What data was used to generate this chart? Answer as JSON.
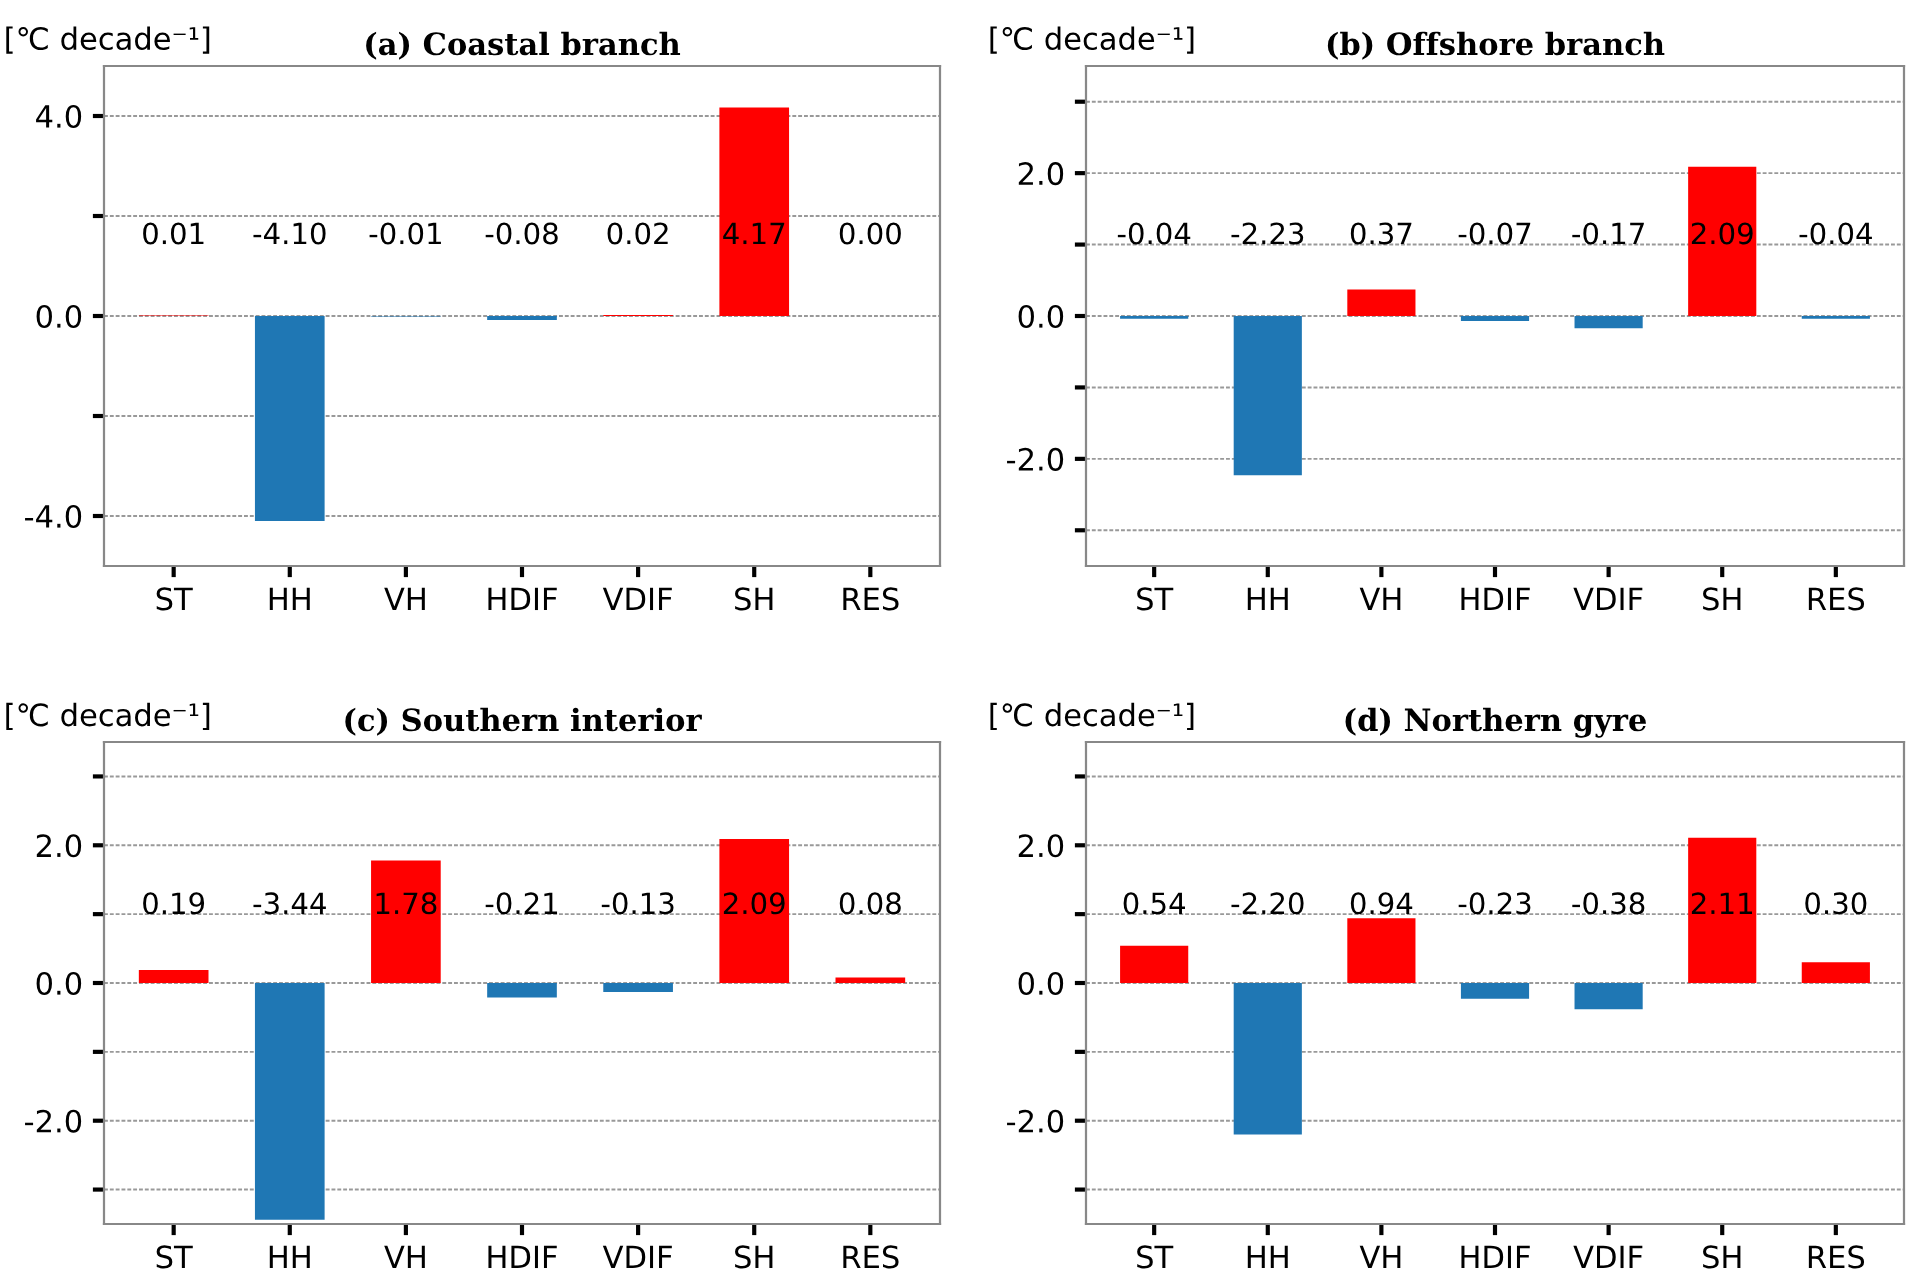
{
  "chart_data": [
    {
      "type": "bar",
      "title": "(a) Coastal branch",
      "ylabel": "[℃ decade⁻¹]",
      "categories": [
        "ST",
        "HH",
        "VH",
        "HDIF",
        "VDIF",
        "SH",
        "RES"
      ],
      "values": [
        0.01,
        -4.1,
        -0.01,
        -0.08,
        0.02,
        4.17,
        0.0
      ],
      "value_labels": [
        "0.01",
        "-4.10",
        "-0.01",
        "-0.08",
        "0.02",
        "4.17",
        "0.00"
      ],
      "colors": [
        "#ff0000",
        "#1f77b4",
        "#1f77b4",
        "#1f77b4",
        "#ff0000",
        "#ff0000",
        "#ff0000"
      ],
      "ylim": [
        -5,
        5
      ],
      "yticks": [
        {
          "value": -4,
          "label": "-4.0"
        },
        {
          "value": -2,
          "label": null
        },
        {
          "value": 0,
          "label": "0.0"
        },
        {
          "value": 2,
          "label": null
        },
        {
          "value": 4,
          "label": "4.0"
        }
      ],
      "grid": "y"
    },
    {
      "type": "bar",
      "title": "(b) Offshore branch",
      "ylabel": "[℃ decade⁻¹]",
      "categories": [
        "ST",
        "HH",
        "VH",
        "HDIF",
        "VDIF",
        "SH",
        "RES"
      ],
      "values": [
        -0.04,
        -2.23,
        0.37,
        -0.07,
        -0.17,
        2.09,
        -0.04
      ],
      "value_labels": [
        "-0.04",
        "-2.23",
        "0.37",
        "-0.07",
        "-0.17",
        "2.09",
        "-0.04"
      ],
      "colors": [
        "#1f77b4",
        "#1f77b4",
        "#ff0000",
        "#1f77b4",
        "#1f77b4",
        "#ff0000",
        "#1f77b4"
      ],
      "ylim": [
        -3.5,
        3.5
      ],
      "yticks": [
        {
          "value": -3,
          "label": null
        },
        {
          "value": -2,
          "label": "-2.0"
        },
        {
          "value": -1,
          "label": null
        },
        {
          "value": 0,
          "label": "0.0"
        },
        {
          "value": 1,
          "label": null
        },
        {
          "value": 2,
          "label": "2.0"
        },
        {
          "value": 3,
          "label": null
        }
      ],
      "grid": "y"
    },
    {
      "type": "bar",
      "title": "(c) Southern interior",
      "ylabel": "[℃ decade⁻¹]",
      "categories": [
        "ST",
        "HH",
        "VH",
        "HDIF",
        "VDIF",
        "SH",
        "RES"
      ],
      "values": [
        0.19,
        -3.44,
        1.78,
        -0.21,
        -0.13,
        2.09,
        0.08
      ],
      "value_labels": [
        "0.19",
        "-3.44",
        "1.78",
        "-0.21",
        "-0.13",
        "2.09",
        "0.08"
      ],
      "colors": [
        "#ff0000",
        "#1f77b4",
        "#ff0000",
        "#1f77b4",
        "#1f77b4",
        "#ff0000",
        "#ff0000"
      ],
      "ylim": [
        -3.5,
        3.5
      ],
      "yticks": [
        {
          "value": -3,
          "label": null
        },
        {
          "value": -2,
          "label": "-2.0"
        },
        {
          "value": -1,
          "label": null
        },
        {
          "value": 0,
          "label": "0.0"
        },
        {
          "value": 1,
          "label": null
        },
        {
          "value": 2,
          "label": "2.0"
        },
        {
          "value": 3,
          "label": null
        }
      ],
      "grid": "y"
    },
    {
      "type": "bar",
      "title": "(d) Northern gyre",
      "ylabel": "[℃ decade⁻¹]",
      "categories": [
        "ST",
        "HH",
        "VH",
        "HDIF",
        "VDIF",
        "SH",
        "RES"
      ],
      "values": [
        0.54,
        -2.2,
        0.94,
        -0.23,
        -0.38,
        2.11,
        0.3
      ],
      "value_labels": [
        "0.54",
        "-2.20",
        "0.94",
        "-0.23",
        "-0.38",
        "2.11",
        "0.30"
      ],
      "colors": [
        "#ff0000",
        "#1f77b4",
        "#ff0000",
        "#1f77b4",
        "#1f77b4",
        "#ff0000",
        "#ff0000"
      ],
      "ylim": [
        -3.5,
        3.5
      ],
      "yticks": [
        {
          "value": -3,
          "label": null
        },
        {
          "value": -2,
          "label": "-2.0"
        },
        {
          "value": -1,
          "label": null
        },
        {
          "value": 0,
          "label": "0.0"
        },
        {
          "value": 1,
          "label": null
        },
        {
          "value": 2,
          "label": "2.0"
        },
        {
          "value": 3,
          "label": null
        }
      ],
      "grid": "y"
    }
  ]
}
